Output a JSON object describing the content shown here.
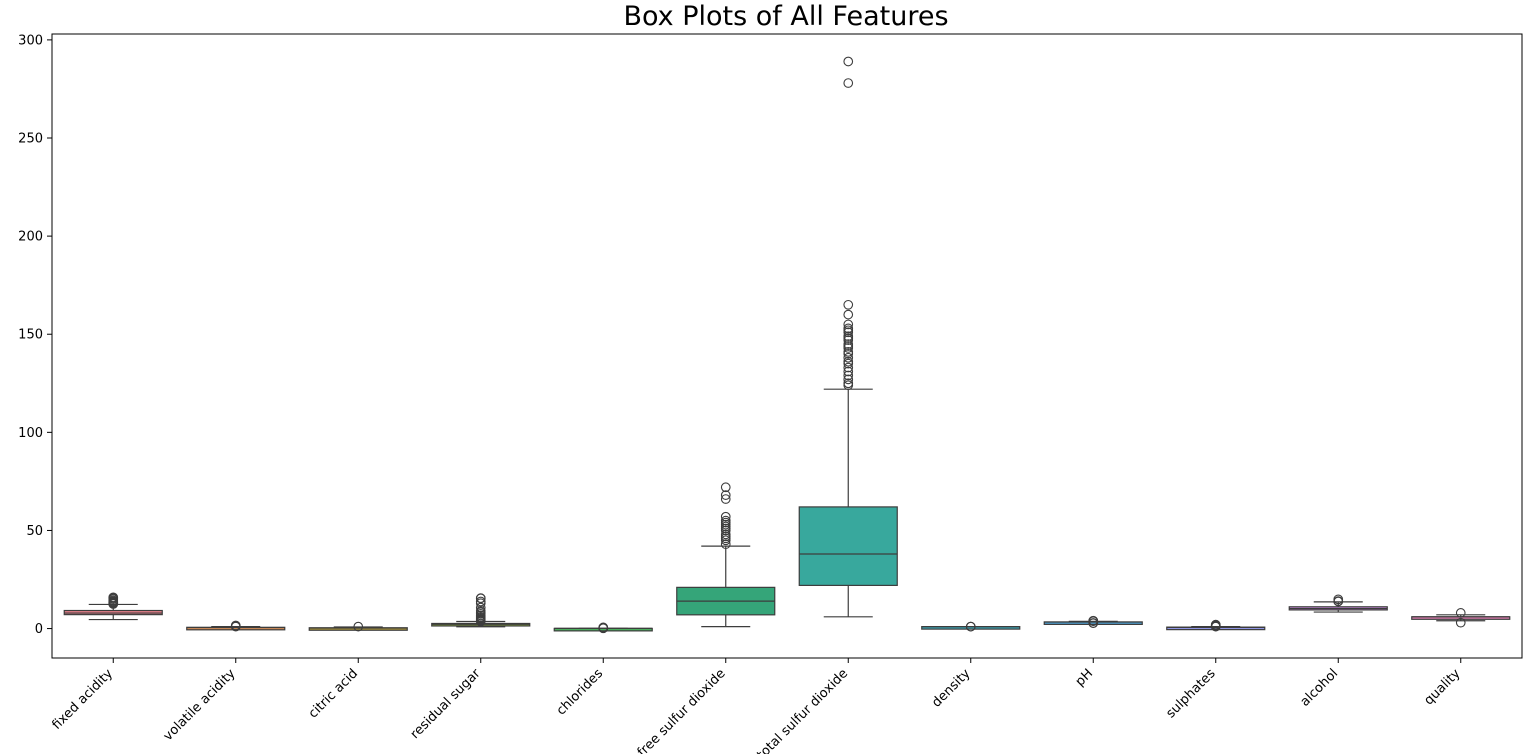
{
  "chart_data": {
    "type": "box",
    "title": "Box Plots of All Features",
    "xlabel": "",
    "ylabel": "",
    "ylim": [
      -15,
      303
    ],
    "yticks": [
      0,
      50,
      100,
      150,
      200,
      250,
      300
    ],
    "grid": false,
    "legend": "none",
    "categories": [
      "fixed acidity",
      "volatile acidity",
      "citric acid",
      "residual sugar",
      "chlorides",
      "free sulfur dioxide",
      "total sulfur dioxide",
      "density",
      "pH",
      "sulphates",
      "alcohol",
      "quality"
    ],
    "boxes": [
      {
        "name": "fixed acidity",
        "whisker_low": 4.6,
        "q1": 7.1,
        "median": 7.9,
        "q3": 9.2,
        "whisker_high": 12.3,
        "outliers": [
          12.5,
          12.8,
          13.0,
          13.3,
          13.5,
          13.8,
          14.3,
          15.0,
          15.5,
          15.9
        ],
        "color": "#e8808a"
      },
      {
        "name": "volatile acidity",
        "whisker_low": 0.12,
        "q1": 0.39,
        "median": 0.52,
        "q3": 0.64,
        "whisker_high": 1.01,
        "outliers": [
          1.02,
          1.1,
          1.24,
          1.33,
          1.58
        ],
        "color": "#d8905a"
      },
      {
        "name": "citric acid",
        "whisker_low": 0.0,
        "q1": 0.09,
        "median": 0.26,
        "q3": 0.42,
        "whisker_high": 0.79,
        "outliers": [
          1.0
        ],
        "color": "#b09a3c"
      },
      {
        "name": "residual sugar",
        "whisker_low": 0.9,
        "q1": 1.9,
        "median": 2.2,
        "q3": 2.6,
        "whisker_high": 3.6,
        "outliers": [
          3.7,
          4.0,
          4.5,
          5.0,
          5.5,
          6.0,
          6.7,
          7.5,
          8.3,
          9.0,
          10.7,
          12.9,
          13.8,
          15.4,
          15.5
        ],
        "color": "#8aa83a"
      },
      {
        "name": "chlorides",
        "whisker_low": 0.012,
        "q1": 0.07,
        "median": 0.079,
        "q3": 0.09,
        "whisker_high": 0.119,
        "outliers": [
          0.15,
          0.25,
          0.35,
          0.45,
          0.61
        ],
        "color": "#4aae5c"
      },
      {
        "name": "free sulfur dioxide",
        "whisker_low": 1.0,
        "q1": 7.0,
        "median": 14.0,
        "q3": 21.0,
        "whisker_high": 42.0,
        "outliers": [
          43,
          45,
          46,
          47,
          48,
          50,
          51,
          52,
          53,
          54,
          55,
          57,
          66,
          68,
          72
        ],
        "color": "#35a579"
      },
      {
        "name": "total sulfur dioxide",
        "whisker_low": 6.0,
        "q1": 22.0,
        "median": 38.0,
        "q3": 62.0,
        "whisker_high": 122.0,
        "outliers": [
          124,
          125,
          127,
          129,
          131,
          133,
          135,
          136,
          138,
          140,
          141,
          143,
          144,
          145,
          147,
          148,
          149,
          151,
          152,
          153,
          155,
          160,
          165,
          278,
          289
        ],
        "color": "#38a89d"
      },
      {
        "name": "density",
        "whisker_low": 0.992,
        "q1": 0.9956,
        "median": 0.9968,
        "q3": 0.9978,
        "whisker_high": 1.001,
        "outliers": [
          0.99,
          1.003
        ],
        "color": "#3aa5b5"
      },
      {
        "name": "pH",
        "whisker_low": 2.92,
        "q1": 3.21,
        "median": 3.31,
        "q3": 3.4,
        "whisker_high": 3.68,
        "outliers": [
          2.74,
          2.86,
          3.75,
          3.85,
          4.01
        ],
        "color": "#4e9fd0"
      },
      {
        "name": "sulphates",
        "whisker_low": 0.33,
        "q1": 0.55,
        "median": 0.62,
        "q3": 0.73,
        "whisker_high": 0.99,
        "outliers": [
          1.0,
          1.1,
          1.2,
          1.36,
          1.5,
          1.62,
          1.8,
          2.0
        ],
        "color": "#8f95e4"
      },
      {
        "name": "alcohol",
        "whisker_low": 8.4,
        "q1": 9.5,
        "median": 10.2,
        "q3": 11.1,
        "whisker_high": 13.6,
        "outliers": [
          13.8,
          14.0,
          14.9
        ],
        "color": "#c585d8"
      },
      {
        "name": "quality",
        "whisker_low": 4.0,
        "q1": 5.0,
        "median": 6.0,
        "q3": 6.0,
        "whisker_high": 7.0,
        "outliers": [
          3.0,
          8.0
        ],
        "color": "#e27fb4"
      }
    ]
  }
}
